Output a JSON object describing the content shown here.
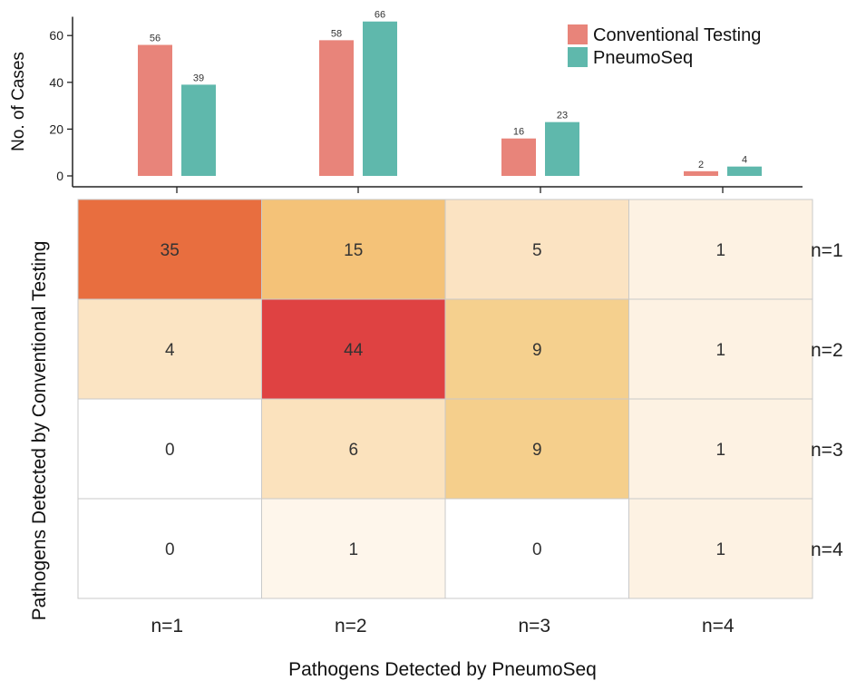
{
  "chart_data": [
    {
      "type": "bar",
      "title": "",
      "ylabel": "No. of Cases",
      "xlabel": "",
      "categories": [
        "n=1",
        "n=2",
        "n=3",
        "n=4"
      ],
      "ylim": [
        0,
        68
      ],
      "yticks": [
        0,
        20,
        40,
        60
      ],
      "series": [
        {
          "name": "Conventional Testing",
          "color": "#e8847a",
          "values": [
            56,
            58,
            16,
            2
          ]
        },
        {
          "name": "PneumoSeq",
          "color": "#5fb8ac",
          "values": [
            39,
            66,
            23,
            4
          ]
        }
      ],
      "legend_position": "top-right"
    },
    {
      "type": "heatmap",
      "xlabel": "Pathogens Detected by PneumoSeq",
      "ylabel": "Pathogens Detected by Conventional Testing",
      "x_categories": [
        "n=1",
        "n=2",
        "n=3",
        "n=4"
      ],
      "y_categories": [
        "n=1",
        "n=2",
        "n=3",
        "n=4"
      ],
      "values": [
        [
          35,
          15,
          5,
          1
        ],
        [
          4,
          44,
          9,
          1
        ],
        [
          0,
          6,
          9,
          1
        ],
        [
          0,
          1,
          0,
          1
        ]
      ],
      "colors": [
        [
          "#e86e3f",
          "#f4c278",
          "#fbe3c2",
          "#fdf2e3"
        ],
        [
          "#fbe4c3",
          "#df4242",
          "#f5d08e",
          "#fdf2e3"
        ],
        [
          "#ffffff",
          "#fbe2bd",
          "#f5cf8c",
          "#fdf2e3"
        ],
        [
          "#ffffff",
          "#fef6eb",
          "#ffffff",
          "#fdf2e3"
        ]
      ]
    }
  ]
}
